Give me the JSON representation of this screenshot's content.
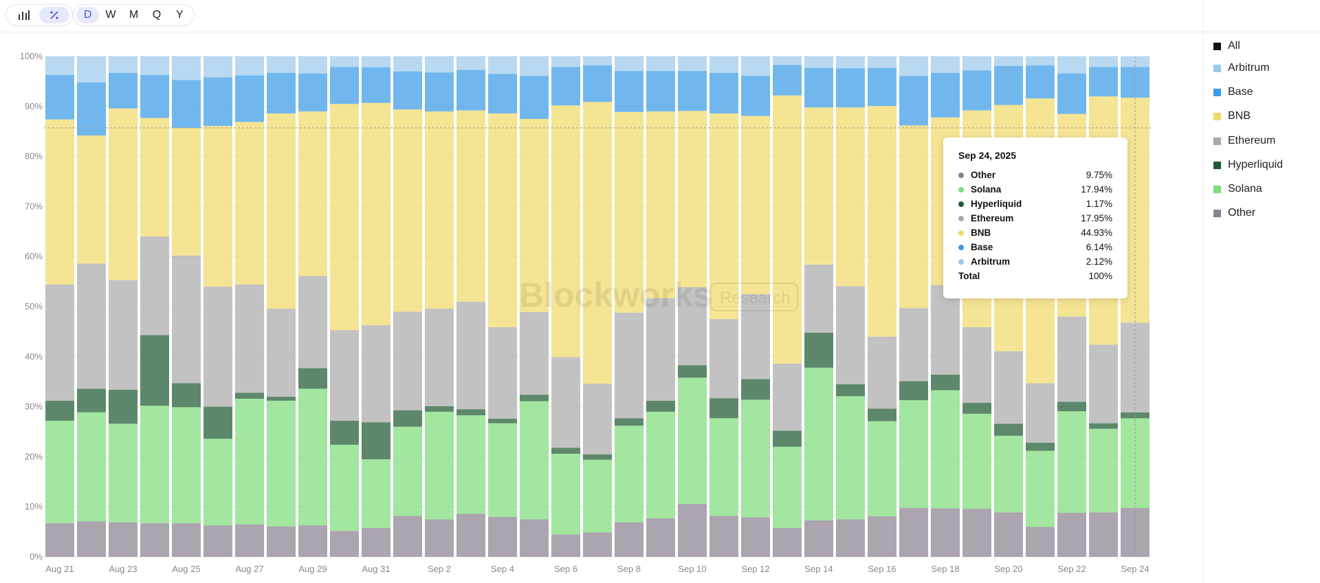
{
  "toolbar": {
    "view_icons": [
      "bar-chart-icon",
      "percent-icon"
    ],
    "timeframes": [
      "D",
      "W",
      "M",
      "Q",
      "Y"
    ],
    "active_timeframe": "D"
  },
  "watermark": {
    "brand": "Blockworks",
    "tag": "Research"
  },
  "legend": {
    "all_label": "All",
    "items": [
      {
        "label": "Arbitrum",
        "color": "#9ccbeb"
      },
      {
        "label": "Base",
        "color": "#3a9be8"
      },
      {
        "label": "BNB",
        "color": "#f0d96a"
      },
      {
        "label": "Ethereum",
        "color": "#aaaaaa"
      },
      {
        "label": "Hyperliquid",
        "color": "#1e5a32"
      },
      {
        "label": "Solana",
        "color": "#7edc7b"
      },
      {
        "label": "Other",
        "color": "#8c8190"
      }
    ]
  },
  "tooltip": {
    "date": "Sep 24, 2025",
    "rows": [
      {
        "name": "Other",
        "value": "9.75%",
        "color": "#8c8190"
      },
      {
        "name": "Solana",
        "value": "17.94%",
        "color": "#7edc7b"
      },
      {
        "name": "Hyperliquid",
        "value": "1.17%",
        "color": "#1e5a32"
      },
      {
        "name": "Ethereum",
        "value": "17.95%",
        "color": "#aaaaaa"
      },
      {
        "name": "BNB",
        "value": "44.93%",
        "color": "#f0d96a"
      },
      {
        "name": "Base",
        "value": "6.14%",
        "color": "#3a9be8"
      },
      {
        "name": "Arbitrum",
        "value": "2.12%",
        "color": "#9ccbeb"
      }
    ],
    "total_label": "Total",
    "total_value": "100%"
  },
  "chart_data": {
    "type": "bar",
    "stacked": true,
    "normalized": true,
    "title": "",
    "xlabel": "",
    "ylabel": "",
    "ylim": [
      0,
      100
    ],
    "y_ticks": [
      "0%",
      "10%",
      "20%",
      "30%",
      "40%",
      "50%",
      "60%",
      "70%",
      "80%",
      "90%",
      "100%"
    ],
    "categories": [
      "Aug 21",
      "Aug 22",
      "Aug 23",
      "Aug 24",
      "Aug 25",
      "Aug 26",
      "Aug 27",
      "Aug 28",
      "Aug 29",
      "Aug 30",
      "Aug 31",
      "Sep 1",
      "Sep 2",
      "Sep 3",
      "Sep 4",
      "Sep 5",
      "Sep 6",
      "Sep 7",
      "Sep 8",
      "Sep 9",
      "Sep 10",
      "Sep 11",
      "Sep 12",
      "Sep 13",
      "Sep 14",
      "Sep 15",
      "Sep 16",
      "Sep 17",
      "Sep 18",
      "Sep 19",
      "Sep 20",
      "Sep 21",
      "Sep 22",
      "Sep 23",
      "Sep 24"
    ],
    "x_tick_labels": [
      "Aug 21",
      "Aug 23",
      "Aug 25",
      "Aug 27",
      "Aug 29",
      "Aug 31",
      "Sep 2",
      "Sep 4",
      "Sep 6",
      "Sep 8",
      "Sep 10",
      "Sep 12",
      "Sep 14",
      "Sep 16",
      "Sep 18",
      "Sep 20",
      "Sep 22",
      "Sep 24"
    ],
    "series": [
      {
        "name": "Other",
        "color": "#8c8190",
        "values": [
          6.7,
          7.1,
          6.9,
          6.7,
          6.7,
          6.3,
          6.5,
          6.1,
          6.3,
          5.2,
          5.8,
          8.2,
          7.5,
          8.6,
          8.0,
          7.5,
          4.5,
          4.9,
          6.9,
          7.7,
          10.6,
          8.2,
          7.9,
          5.8,
          7.3,
          7.5,
          8.1,
          9.8,
          9.7,
          9.6,
          8.9,
          6.0,
          8.8,
          8.9,
          9.75
        ]
      },
      {
        "name": "Solana",
        "color": "#7edc7b",
        "values": [
          20.5,
          21.8,
          19.7,
          23.5,
          23.2,
          17.3,
          25.1,
          25.1,
          27.3,
          17.2,
          13.7,
          17.8,
          21.5,
          19.7,
          18.7,
          23.6,
          16.1,
          14.5,
          19.3,
          21.3,
          25.2,
          19.5,
          23.5,
          16.2,
          30.5,
          24.6,
          19.0,
          21.5,
          23.6,
          19.0,
          15.3,
          15.2,
          20.3,
          16.7,
          17.94
        ]
      },
      {
        "name": "Hyperliquid",
        "color": "#1e5a32",
        "values": [
          4.0,
          4.7,
          6.8,
          14.1,
          4.8,
          6.4,
          1.2,
          0.8,
          4.1,
          4.8,
          7.4,
          3.3,
          1.1,
          1.2,
          0.9,
          1.3,
          1.2,
          1.1,
          1.5,
          2.2,
          2.5,
          4.0,
          4.1,
          3.2,
          7.0,
          2.4,
          2.5,
          3.8,
          3.1,
          2.2,
          2.4,
          1.6,
          1.9,
          1.1,
          1.17
        ]
      },
      {
        "name": "Ethereum",
        "color": "#aaaaaa",
        "values": [
          23.2,
          25.0,
          21.9,
          19.7,
          25.5,
          24.0,
          21.6,
          17.6,
          18.4,
          18.1,
          19.4,
          19.7,
          19.5,
          21.5,
          18.3,
          16.5,
          18.1,
          14.1,
          21.1,
          20.5,
          15.6,
          15.8,
          17.0,
          13.4,
          13.6,
          19.6,
          14.4,
          14.6,
          17.9,
          15.1,
          14.5,
          11.9,
          17.0,
          15.7,
          17.95
        ]
      },
      {
        "name": "BNB",
        "color": "#f0d96a",
        "values": [
          33.0,
          25.6,
          34.3,
          23.7,
          25.5,
          32.1,
          32.5,
          39.0,
          32.9,
          45.2,
          44.4,
          40.4,
          39.4,
          38.2,
          42.7,
          38.6,
          50.3,
          56.3,
          40.1,
          37.3,
          35.2,
          41.1,
          35.6,
          53.6,
          31.4,
          35.7,
          46.1,
          36.5,
          33.5,
          43.3,
          49.2,
          56.9,
          40.5,
          49.6,
          44.93
        ]
      },
      {
        "name": "Base",
        "color": "#3a9be8",
        "values": [
          8.9,
          10.6,
          7.1,
          8.6,
          9.6,
          9.7,
          9.3,
          8.1,
          7.6,
          7.4,
          7.1,
          7.6,
          7.8,
          8.1,
          7.9,
          8.6,
          7.7,
          7.3,
          8.2,
          8.1,
          8.0,
          8.1,
          8.0,
          6.1,
          7.9,
          7.8,
          7.6,
          9.9,
          8.9,
          8.0,
          7.8,
          6.6,
          8.1,
          5.9,
          6.14
        ]
      },
      {
        "name": "Arbitrum",
        "color": "#9ccbeb",
        "values": [
          3.7,
          5.2,
          3.3,
          3.7,
          4.7,
          4.6,
          3.8,
          3.3,
          3.4,
          2.3,
          2.2,
          3.3,
          3.4,
          3.0,
          3.5,
          4.1,
          2.1,
          1.8,
          2.9,
          3.0,
          2.9,
          3.4,
          3.9,
          1.8,
          2.3,
          2.4,
          2.4,
          3.9,
          3.3,
          2.8,
          2.0,
          1.8,
          3.4,
          2.1,
          2.12
        ]
      }
    ]
  }
}
